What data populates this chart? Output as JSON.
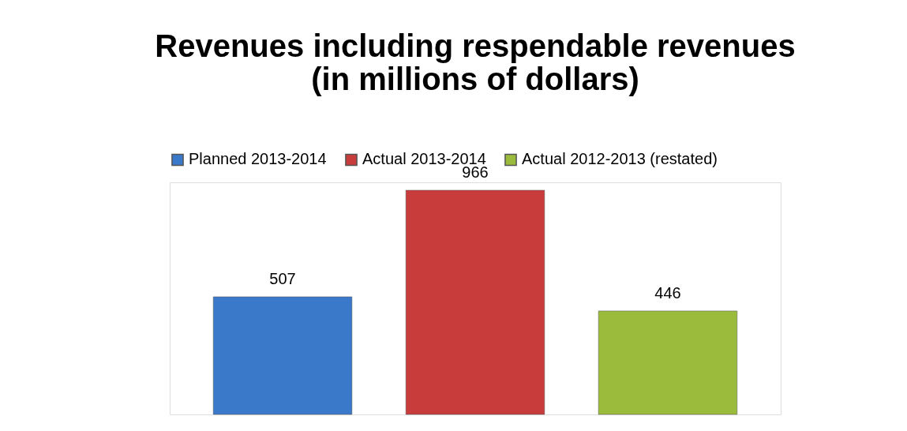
{
  "chart_data": {
    "type": "bar",
    "title": "Revenues including respendable revenues\n(in millions of dollars)",
    "categories": [
      null
    ],
    "series": [
      {
        "name": "Planned 2013-2014",
        "color": "#3a78c9",
        "values": [
          507
        ]
      },
      {
        "name": "Actual 2013-2014",
        "color": "#c83c3c",
        "values": [
          966
        ]
      },
      {
        "name": "Actual 2012-2013 (restated)",
        "color": "#9bbb3c",
        "values": [
          446
        ]
      }
    ],
    "data_labels": true,
    "legend": "top",
    "grid": false
  }
}
